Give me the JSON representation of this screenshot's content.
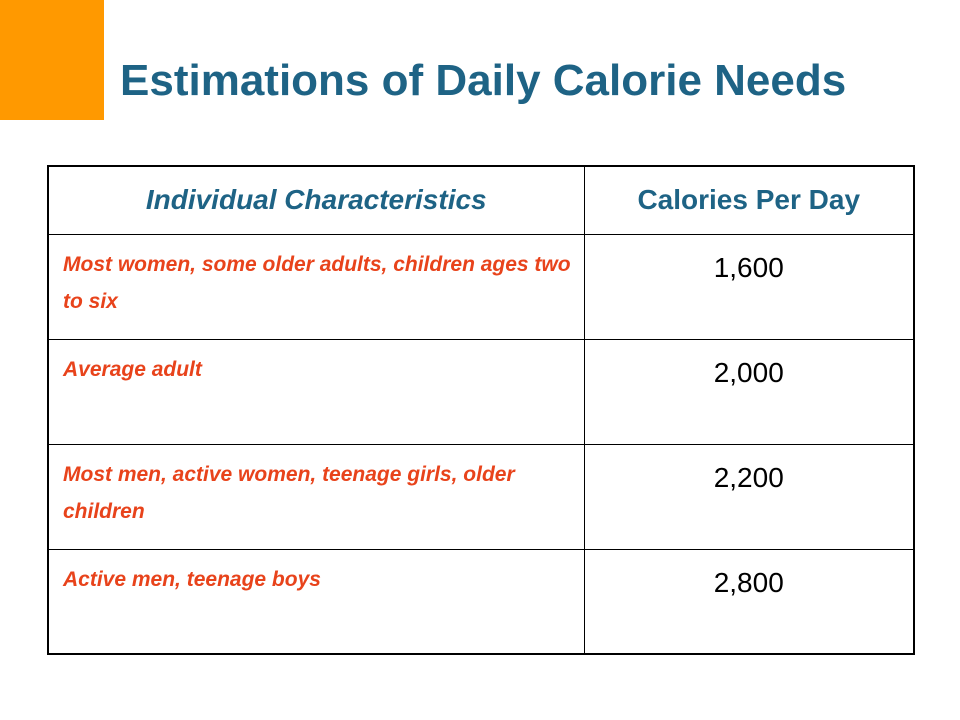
{
  "slide": {
    "title": "Estimations of Daily Calorie Needs",
    "accent_color": "#ff9900",
    "title_color": "#1e6385",
    "row_text_color": "#e8431b"
  },
  "table": {
    "headers": [
      "Individual Characteristics",
      "Calories Per Day"
    ],
    "rows": [
      {
        "characteristics": "Most women, some older adults, children ages two to six",
        "calories": "1,600"
      },
      {
        "characteristics": "Average adult",
        "calories": "2,000"
      },
      {
        "characteristics": "Most men, active women, teenage girls, older children",
        "calories": "2,200"
      },
      {
        "characteristics": "Active men, teenage boys",
        "calories": "2,800"
      }
    ]
  }
}
